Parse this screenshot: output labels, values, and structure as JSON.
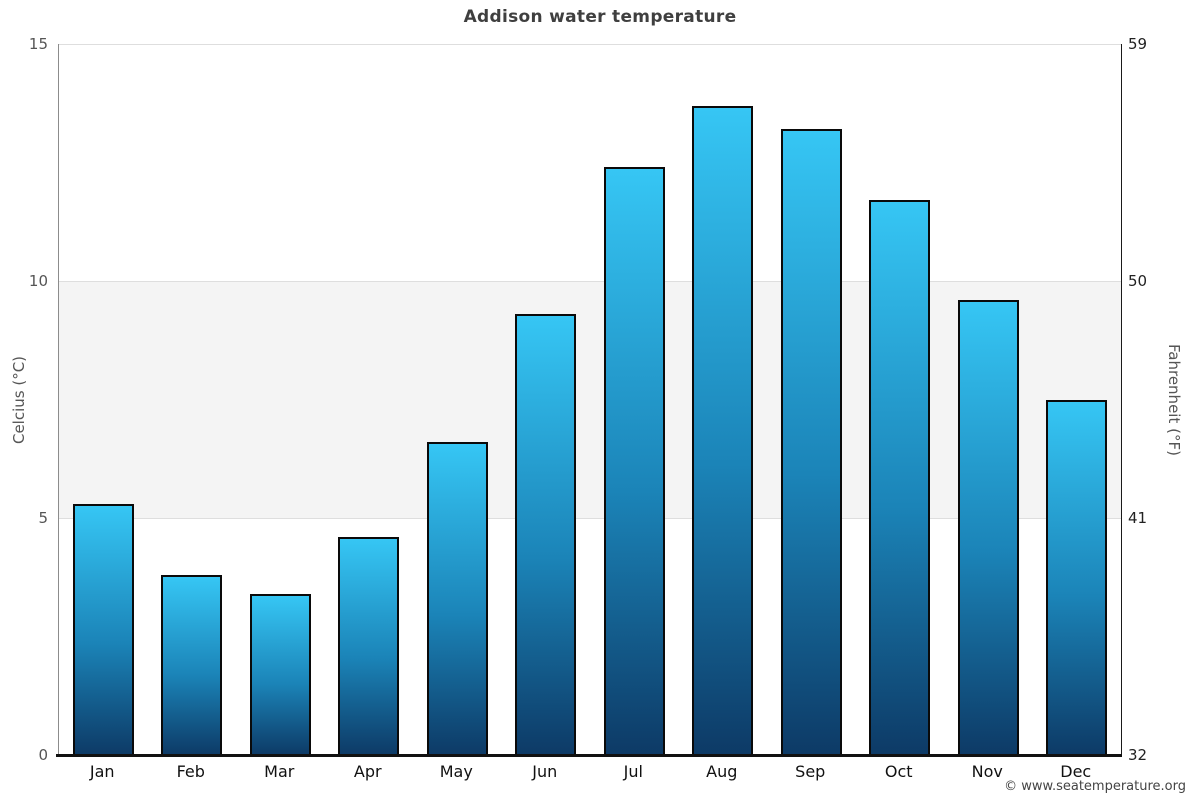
{
  "chart_data": {
    "type": "bar",
    "title": "Addison water temperature",
    "categories": [
      "Jan",
      "Feb",
      "Mar",
      "Apr",
      "May",
      "Jun",
      "Jul",
      "Aug",
      "Sep",
      "Oct",
      "Nov",
      "Dec"
    ],
    "values": [
      5.3,
      3.8,
      3.4,
      4.6,
      6.6,
      9.3,
      12.4,
      13.7,
      13.2,
      11.7,
      9.6,
      7.5
    ],
    "ylabel_left": "Celcius (°C)",
    "ylabel_right": "Fahrenheit (°F)",
    "ylim": [
      0,
      15
    ],
    "yticks_left": [
      0,
      5,
      10,
      15
    ],
    "yticks_right": [
      32,
      41,
      50,
      59
    ],
    "band_range": [
      5,
      10
    ],
    "legend": "none",
    "grid": "horizontal",
    "colors": {
      "bar_gradient_top": "#36c6f4",
      "bar_gradient_bottom": "#0d3a66",
      "bar_border": "#0a0a0a",
      "band": "#f4f4f4",
      "gridline": "#dedede",
      "axis_left_line": "#8c8c8c",
      "axis_right_line": "#1a1a1a",
      "baseline": "#111111"
    }
  },
  "footer": {
    "copyright": "© www.seatemperature.org"
  }
}
